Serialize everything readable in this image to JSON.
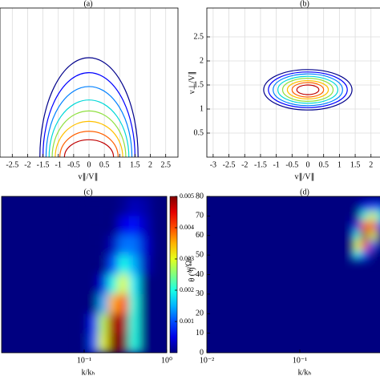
{
  "chart_data": [
    {
      "type": "contour",
      "title": "(a)",
      "xlabel": "v∥/V∥",
      "xlim": [
        -2.9,
        2.9
      ],
      "ylim": [
        0,
        3
      ],
      "xticks": [
        -2.5,
        -2,
        -1.5,
        -1,
        -0.5,
        0,
        0.5,
        1,
        1.5,
        2,
        2.5
      ],
      "grid": true,
      "curves": [
        {
          "color": "#00008b",
          "x0": 0,
          "y0": 0,
          "rx": 1.6,
          "ry": 2.0
        },
        {
          "color": "#0000ff",
          "x0": 0,
          "y0": 0,
          "rx": 1.5,
          "ry": 1.7
        },
        {
          "color": "#0080ff",
          "x0": 0,
          "y0": 0,
          "rx": 1.4,
          "ry": 1.42
        },
        {
          "color": "#00d8d8",
          "x0": 0,
          "y0": 0,
          "rx": 1.3,
          "ry": 1.15
        },
        {
          "color": "#90e040",
          "x0": 0,
          "y0": 0,
          "rx": 1.2,
          "ry": 0.93
        },
        {
          "color": "#ffc000",
          "x0": 0,
          "y0": 0,
          "rx": 1.1,
          "ry": 0.72
        },
        {
          "color": "#ff6000",
          "x0": 0,
          "y0": 0,
          "rx": 0.95,
          "ry": 0.52
        },
        {
          "color": "#c00000",
          "x0": 0,
          "y0": 0,
          "rx": 0.8,
          "ry": 0.35
        }
      ]
    },
    {
      "type": "contour",
      "title": "(b)",
      "xlabel": "v∥/V∥",
      "ylabel": "v⊥/V∥",
      "xlim": [
        -3.2,
        3.2
      ],
      "ylim": [
        0,
        3.1
      ],
      "xticks": [
        -3,
        -2.5,
        -2,
        -1.5,
        -1,
        -0.5,
        0,
        0.5,
        1,
        1.5,
        2
      ],
      "yticks": [
        0.5,
        1,
        1.5,
        2,
        2.5
      ],
      "grid": true,
      "curves": [
        {
          "color": "#00008b",
          "x0": 0,
          "y0": 1.4,
          "rx": 1.4,
          "ry": 0.42
        },
        {
          "color": "#0000ff",
          "x0": 0,
          "y0": 1.4,
          "rx": 1.25,
          "ry": 0.37
        },
        {
          "color": "#0080ff",
          "x0": 0,
          "y0": 1.4,
          "rx": 1.1,
          "ry": 0.33
        },
        {
          "color": "#00d8d8",
          "x0": 0,
          "y0": 1.4,
          "rx": 0.95,
          "ry": 0.28
        },
        {
          "color": "#90e040",
          "x0": 0,
          "y0": 1.4,
          "rx": 0.8,
          "ry": 0.24
        },
        {
          "color": "#ffc000",
          "x0": 0,
          "y0": 1.4,
          "rx": 0.65,
          "ry": 0.19
        },
        {
          "color": "#ff6000",
          "x0": 0,
          "y0": 1.4,
          "rx": 0.5,
          "ry": 0.15
        },
        {
          "color": "#c00000",
          "x0": 0,
          "y0": 1.4,
          "rx": 0.35,
          "ry": 0.1
        }
      ]
    },
    {
      "type": "heatmap",
      "title": "(c)",
      "xlabel": "k/kₕ",
      "xscale": "log",
      "xlim": [
        0.01,
        1
      ],
      "ylim": [
        0,
        80
      ],
      "xticks": [
        {
          "value": 0.1,
          "label": "10⁻¹"
        },
        {
          "value": 1,
          "label": "10⁰"
        }
      ],
      "zlim": [
        0,
        0.005
      ],
      "colorbar": {
        "label": "γ/Ωₕ",
        "ticks": [
          0.001,
          0.002,
          0.003,
          0.004,
          0.005
        ]
      },
      "x": [
        0.1,
        0.13,
        0.17,
        0.22,
        0.3,
        0.4,
        0.55,
        0.75
      ],
      "y": [
        5,
        15,
        25,
        35,
        45,
        55,
        65,
        75
      ],
      "z": [
        [
          0,
          0.001,
          0.003,
          0.005,
          0.005,
          0.002,
          0,
          0
        ],
        [
          0,
          0.0008,
          0.0028,
          0.0048,
          0.0048,
          0.002,
          0,
          0
        ],
        [
          0,
          0,
          0.0015,
          0.0035,
          0.004,
          0.002,
          0,
          0
        ],
        [
          0,
          0,
          0.0005,
          0.002,
          0.003,
          0.0018,
          0,
          0
        ],
        [
          0,
          0,
          0,
          0.001,
          0.002,
          0.0015,
          0.0003,
          0
        ],
        [
          0,
          0,
          0,
          0.0003,
          0.0012,
          0.0012,
          0.0004,
          0
        ],
        [
          0,
          0,
          0,
          0,
          0.0005,
          0.0007,
          0.0003,
          0
        ],
        [
          0,
          0,
          0,
          0,
          0.0001,
          0.0003,
          0.0002,
          0
        ]
      ]
    },
    {
      "type": "heatmap",
      "title": "(d)",
      "xlabel": "k/kₕ",
      "ylabel": "θ (°)",
      "xscale": "log",
      "xlim": [
        0.01,
        1
      ],
      "ylim": [
        0,
        80
      ],
      "xticks": [
        {
          "value": 0.01,
          "label": "10⁻²"
        },
        {
          "value": 0.1,
          "label": "10⁻¹"
        }
      ],
      "yticks": [
        0,
        10,
        20,
        30,
        40,
        50,
        60,
        70,
        80
      ],
      "zlim": [
        0,
        0.005
      ],
      "x": [
        0.4,
        0.5,
        0.6,
        0.75
      ],
      "y": [
        50,
        55,
        60,
        65,
        70,
        75
      ],
      "z": [
        [
          0.002,
          0.001,
          0,
          0
        ],
        [
          0.003,
          0.004,
          0.001,
          0
        ],
        [
          0.002,
          0.005,
          0.003,
          0
        ],
        [
          0.0005,
          0.004,
          0.004,
          0.001
        ],
        [
          0,
          0.002,
          0.003,
          0.002
        ],
        [
          0,
          0.0005,
          0.001,
          0.001
        ]
      ]
    }
  ]
}
